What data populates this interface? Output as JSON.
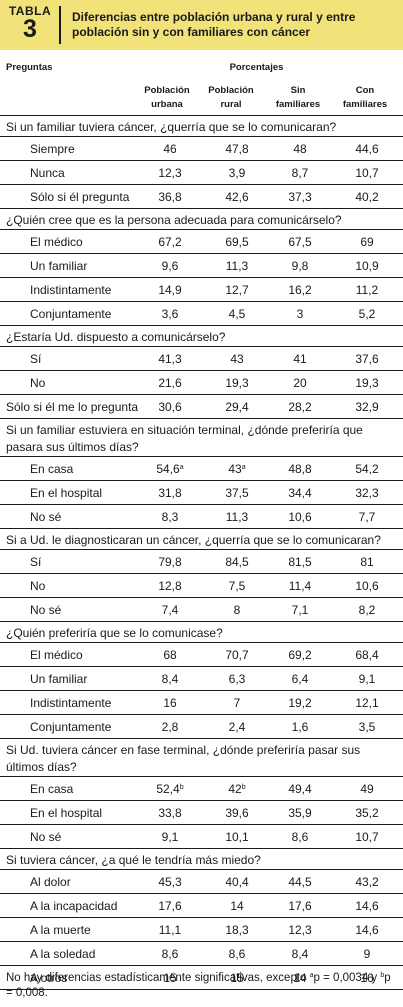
{
  "header": {
    "label": "TABLA",
    "number": "3",
    "title": "Diferencias entre población urbana y rural y entre población sin y con familiares con cáncer"
  },
  "columns": {
    "preguntas": "Preguntas",
    "porcentajes": "Porcentajes",
    "c1a": "Población",
    "c1b": "urbana",
    "c2a": "Población",
    "c2b": "rural",
    "c3a": "Sin",
    "c3b": "familiares",
    "c4a": "Con",
    "c4b": "familiares"
  },
  "sections": [
    {
      "question": "Si un familiar tuviera cáncer, ¿querría que se lo comunicaran?",
      "rows": [
        {
          "label": "Siempre",
          "v": [
            "46",
            "47,8",
            "48",
            "44,6"
          ]
        },
        {
          "label": "Nunca",
          "v": [
            "12,3",
            "3,9",
            "8,7",
            "10,7"
          ]
        },
        {
          "label": "Sólo si él pregunta",
          "v": [
            "36,8",
            "42,6",
            "37,3",
            "40,2"
          ]
        }
      ]
    },
    {
      "question": "¿Quién cree que es la persona adecuada para comunicárselo?",
      "rows": [
        {
          "label": "El médico",
          "v": [
            "67,2",
            "69,5",
            "67,5",
            "69"
          ]
        },
        {
          "label": "Un familiar",
          "v": [
            "9,6",
            "11,3",
            "9,8",
            "10,9"
          ]
        },
        {
          "label": "Indistintamente",
          "v": [
            "14,9",
            "12,7",
            "16,2",
            "11,2"
          ]
        },
        {
          "label": "Conjuntamente",
          "v": [
            "3,6",
            "4,5",
            "3",
            "5,2"
          ]
        }
      ]
    },
    {
      "question": "¿Estaría Ud. dispuesto a comunicárselo?",
      "rows": [
        {
          "label": "Sí",
          "v": [
            "41,3",
            "43",
            "41",
            "37,6"
          ]
        },
        {
          "label": "No",
          "v": [
            "21,6",
            "19,3",
            "20",
            "19,3"
          ]
        },
        {
          "label": "Sólo si él me lo pregunta",
          "v": [
            "30,6",
            "29,4",
            "28,2",
            "32,9"
          ],
          "flush": true
        }
      ]
    },
    {
      "question": "Si un familiar estuviera en situación terminal, ¿dónde preferiría que pasara sus últimos días?",
      "rows": [
        {
          "label": "En casa",
          "v": [
            "54,6",
            "43",
            "48,8",
            "54,2"
          ],
          "sup": [
            "a",
            "a",
            "",
            ""
          ]
        },
        {
          "label": "En el hospital",
          "v": [
            "31,8",
            "37,5",
            "34,4",
            "32,3"
          ]
        },
        {
          "label": "No sé",
          "v": [
            "8,3",
            "11,3",
            "10,6",
            "7,7"
          ]
        }
      ]
    },
    {
      "question": "Si a Ud. le diagnosticaran un cáncer, ¿querría que se lo comunicaran?",
      "rows": [
        {
          "label": "Sí",
          "v": [
            "79,8",
            "84,5",
            "81,5",
            "81"
          ]
        },
        {
          "label": "No",
          "v": [
            "12,8",
            "7,5",
            "11,4",
            "10,6"
          ]
        },
        {
          "label": "No sé",
          "v": [
            "7,4",
            "8",
            "7,1",
            "8,2"
          ]
        }
      ]
    },
    {
      "question": "¿Quién preferiría que se lo comunicase?",
      "rows": [
        {
          "label": "El médico",
          "v": [
            "68",
            "70,7",
            "69,2",
            "68,4"
          ]
        },
        {
          "label": "Un familiar",
          "v": [
            "8,4",
            "6,3",
            "6,4",
            "9,1"
          ]
        },
        {
          "label": "Indistintamente",
          "v": [
            "16",
            "7",
            "19,2",
            "12,1"
          ]
        },
        {
          "label": "Conjuntamente",
          "v": [
            "2,8",
            "2,4",
            "1,6",
            "3,5"
          ]
        }
      ]
    },
    {
      "question": "Si Ud. tuviera cáncer en fase terminal, ¿dónde preferiría pasar sus últimos días?",
      "rows": [
        {
          "label": "En casa",
          "v": [
            "52,4",
            "42",
            "49,4",
            "49"
          ],
          "sup": [
            "b",
            "b",
            "",
            ""
          ]
        },
        {
          "label": "En el hospital",
          "v": [
            "33,8",
            "39,6",
            "35,9",
            "35,2"
          ]
        },
        {
          "label": "No sé",
          "v": [
            "9,1",
            "10,1",
            "8,6",
            "10,7"
          ]
        }
      ]
    },
    {
      "question": "Si tuviera cáncer, ¿a qué le tendría más miedo?",
      "rows": [
        {
          "label": "Al dolor",
          "v": [
            "45,3",
            "40,4",
            "44,5",
            "43,2"
          ]
        },
        {
          "label": "A la incapacidad",
          "v": [
            "17,6",
            "14",
            "17,6",
            "14,6"
          ]
        },
        {
          "label": "A la muerte",
          "v": [
            "11,1",
            "18,3",
            "12,3",
            "14,6"
          ]
        },
        {
          "label": "A la soledad",
          "v": [
            "8,6",
            "8,6",
            "8,4",
            "9"
          ]
        },
        {
          "label": "A otros",
          "v": [
            "15",
            "15",
            "14",
            "16"
          ]
        }
      ]
    }
  ],
  "footnote": {
    "pre": "No hay diferencias estadísticamente significativas, excepto ",
    "sup_a": "a",
    "mid": "p = 0,0034 y ",
    "sup_b": "b",
    "post": "p = 0,008."
  }
}
